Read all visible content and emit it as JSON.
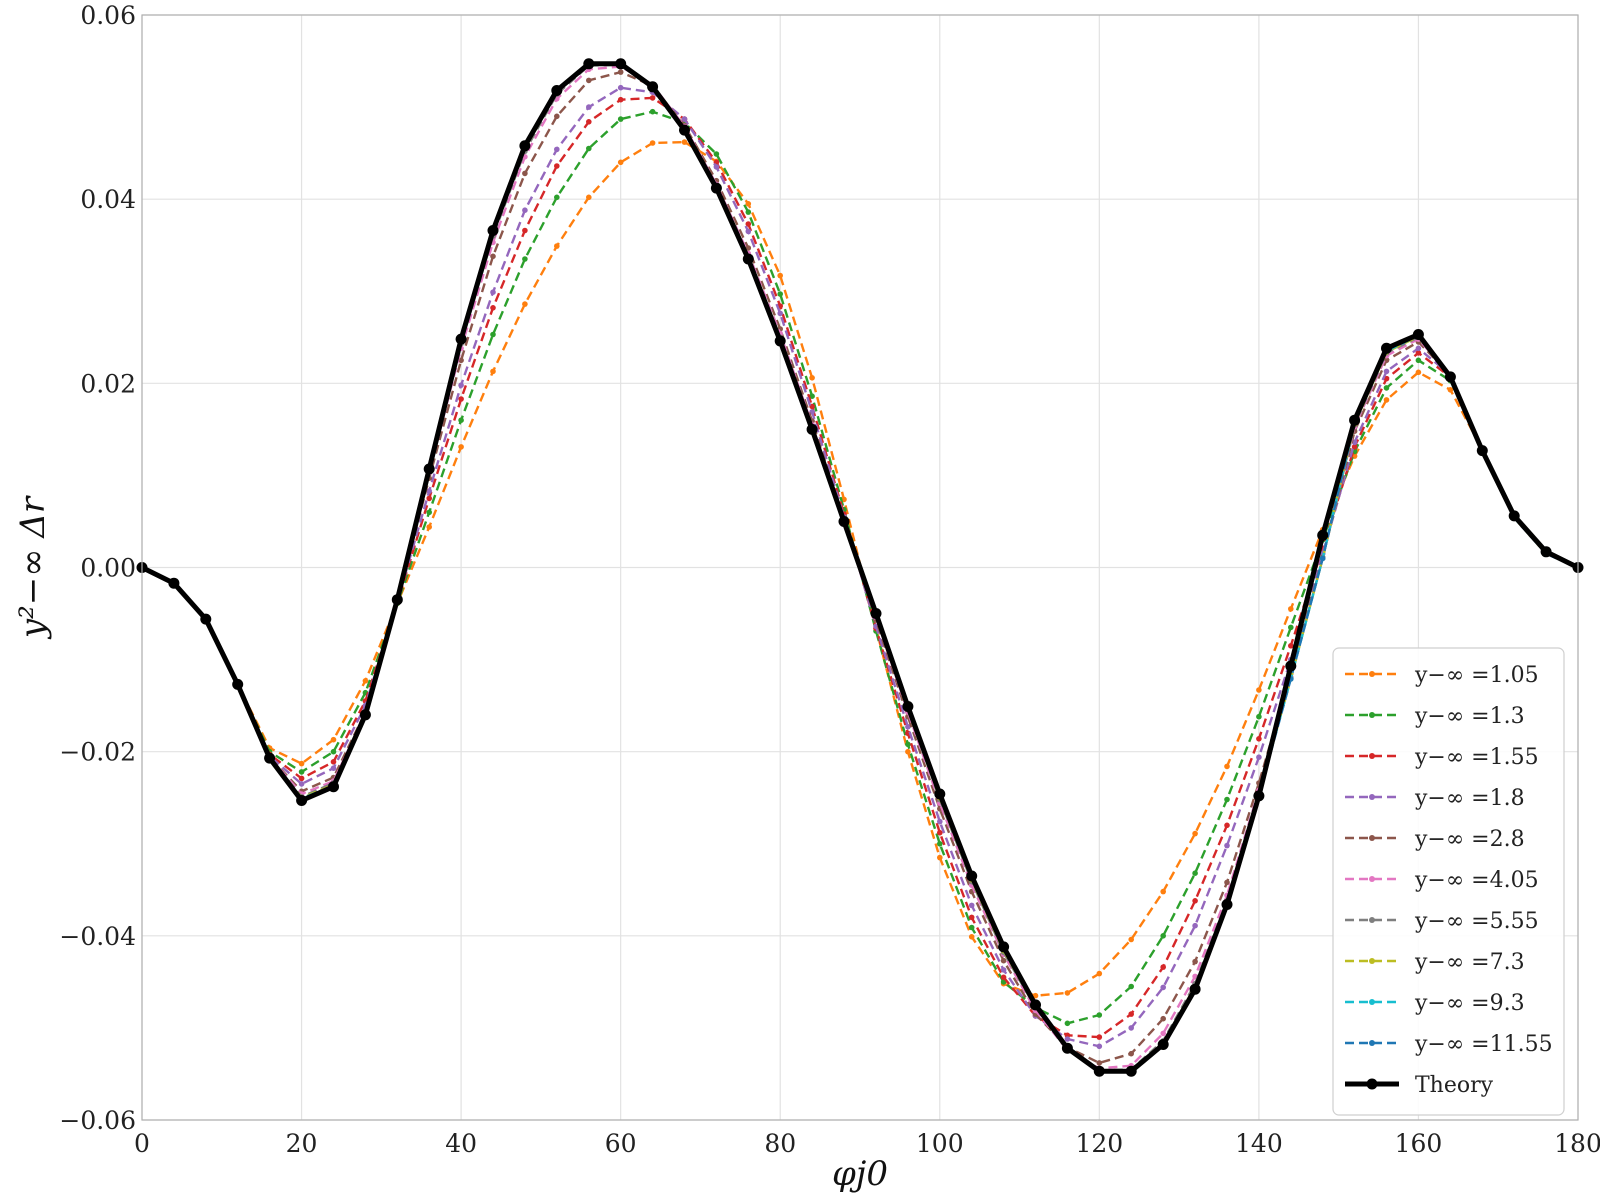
{
  "chart_data": {
    "type": "line",
    "xlabel": "φj0",
    "ylabel": "y²−∞ Δr",
    "xlim": [
      0,
      180
    ],
    "ylim": [
      -0.06,
      0.06
    ],
    "xticks": [
      0,
      20,
      40,
      60,
      80,
      100,
      120,
      140,
      160,
      180
    ],
    "xtick_labels": [
      "0",
      "20",
      "40",
      "60",
      "80",
      "100",
      "120",
      "140",
      "160",
      "180"
    ],
    "yticks": [
      -0.06,
      -0.04,
      -0.02,
      0.0,
      0.02,
      0.04,
      0.06
    ],
    "ytick_labels": [
      "−0.06",
      "−0.04",
      "−0.02",
      "0.00",
      "0.02",
      "0.04",
      "0.06"
    ],
    "grid": true,
    "legend_position": "lower-right",
    "x": [
      0,
      4,
      8,
      12,
      16,
      20,
      24,
      28,
      32,
      36,
      40,
      44,
      48,
      52,
      56,
      60,
      64,
      68,
      72,
      76,
      80,
      84,
      88,
      92,
      96,
      100,
      104,
      108,
      112,
      116,
      120,
      124,
      128,
      132,
      136,
      140,
      144,
      148,
      152,
      156,
      160,
      164,
      168,
      172,
      176,
      180
    ],
    "series": [
      {
        "name": "y−∞ =1.05",
        "color": "#ff7f0e",
        "style": "dashed",
        "values": [
          0,
          -0.0017,
          -0.0056,
          -0.0127,
          -0.0196,
          -0.0213,
          -0.0187,
          -0.0123,
          -0.0039,
          0.0044,
          0.0131,
          0.0213,
          0.0286,
          0.0349,
          0.0402,
          0.044,
          0.0461,
          0.0462,
          0.0441,
          0.0395,
          0.0317,
          0.0206,
          0.0074,
          -0.0066,
          -0.02,
          -0.0315,
          -0.0401,
          -0.0452,
          -0.0465,
          -0.0462,
          -0.0441,
          -0.0404,
          -0.0352,
          -0.0289,
          -0.0216,
          -0.0133,
          -0.0045,
          0.0041,
          0.0121,
          0.0182,
          0.0212,
          0.0193,
          0.0128,
          0.0054,
          0.0015,
          0
        ]
      },
      {
        "name": "y−∞ =1.3",
        "color": "#2ca02c",
        "style": "dashed",
        "values": [
          0,
          -0.0017,
          -0.0056,
          -0.0127,
          -0.02,
          -0.0222,
          -0.02,
          -0.0136,
          -0.0039,
          0.006,
          0.016,
          0.0253,
          0.0335,
          0.0402,
          0.0455,
          0.0487,
          0.0495,
          0.0483,
          0.0449,
          0.0386,
          0.0297,
          0.0186,
          0.0063,
          -0.0069,
          -0.0192,
          -0.03,
          -0.0391,
          -0.045,
          -0.0478,
          -0.0495,
          -0.0486,
          -0.0455,
          -0.04,
          -0.0332,
          -0.0252,
          -0.0162,
          -0.0065,
          0.003,
          0.0126,
          0.0195,
          0.0225,
          0.0203,
          0.0128,
          0.0054,
          0.0015,
          0
        ]
      },
      {
        "name": "y−∞ =1.55",
        "color": "#d62728",
        "style": "dashed",
        "values": [
          0,
          -0.0017,
          -0.0056,
          -0.0127,
          -0.0203,
          -0.0229,
          -0.0211,
          -0.0145,
          -0.0038,
          0.0075,
          0.0183,
          0.0282,
          0.0366,
          0.0436,
          0.0484,
          0.0508,
          0.051,
          0.0487,
          0.044,
          0.0373,
          0.0284,
          0.0175,
          0.0058,
          -0.0066,
          -0.018,
          -0.0288,
          -0.038,
          -0.0445,
          -0.0487,
          -0.0508,
          -0.051,
          -0.0485,
          -0.0434,
          -0.0362,
          -0.028,
          -0.0186,
          -0.0085,
          0.0021,
          0.0131,
          0.0205,
          0.0233,
          0.0207,
          0.0128,
          0.0054,
          0.0015,
          0
        ]
      },
      {
        "name": "y−∞ =1.8",
        "color": "#9467bd",
        "style": "dashed",
        "values": [
          0,
          -0.0017,
          -0.0056,
          -0.0127,
          -0.0205,
          -0.0235,
          -0.0218,
          -0.015,
          -0.0037,
          0.0083,
          0.0198,
          0.0299,
          0.0388,
          0.0454,
          0.05,
          0.0521,
          0.0516,
          0.0487,
          0.0435,
          0.0365,
          0.0276,
          0.0169,
          0.0055,
          -0.0064,
          -0.0173,
          -0.0276,
          -0.0367,
          -0.0437,
          -0.0487,
          -0.0512,
          -0.052,
          -0.05,
          -0.0456,
          -0.0389,
          -0.0302,
          -0.0206,
          -0.01,
          0.0015,
          0.0136,
          0.0213,
          0.0238,
          0.0209,
          0.0128,
          0.0054,
          0.0015,
          0
        ]
      },
      {
        "name": "y−∞ =2.8",
        "color": "#8c564b",
        "style": "dashed",
        "values": [
          0,
          -0.0017,
          -0.0056,
          -0.0127,
          -0.0206,
          -0.0243,
          -0.0228,
          -0.0157,
          -0.0036,
          0.0097,
          0.0225,
          0.0338,
          0.0428,
          0.049,
          0.0529,
          0.0538,
          0.0523,
          0.048,
          0.042,
          0.0347,
          0.0259,
          0.0159,
          0.0051,
          -0.0057,
          -0.0162,
          -0.0262,
          -0.0352,
          -0.0427,
          -0.0485,
          -0.0521,
          -0.0538,
          -0.0528,
          -0.049,
          -0.0428,
          -0.0342,
          -0.0234,
          -0.0115,
          0.0011,
          0.0148,
          0.0225,
          0.0245,
          0.0209,
          0.0128,
          0.0054,
          0.0015,
          0
        ]
      },
      {
        "name": "y−∞ =4.05",
        "color": "#e377c2",
        "style": "dashed",
        "values": [
          0,
          -0.0017,
          -0.0056,
          -0.0127,
          -0.0206,
          -0.0246,
          -0.0232,
          -0.0159,
          -0.0035,
          0.0103,
          0.0238,
          0.0353,
          0.0446,
          0.0509,
          0.0541,
          0.0544,
          0.0524,
          0.0479,
          0.0416,
          0.0341,
          0.0254,
          0.0155,
          0.005,
          -0.0054,
          -0.0157,
          -0.0256,
          -0.0345,
          -0.042,
          -0.0481,
          -0.0524,
          -0.0544,
          -0.0541,
          -0.0506,
          -0.0444,
          -0.0356,
          -0.0242,
          -0.0119,
          0.001,
          0.0153,
          0.023,
          0.0248,
          0.0209,
          0.0128,
          0.0054,
          0.0015,
          0
        ]
      },
      {
        "name": "y−∞ =5.55",
        "color": "#7f7f7f",
        "style": "dashed",
        "values": [
          0,
          -0.0017,
          -0.0056,
          -0.0127,
          -0.0206,
          -0.0249,
          -0.0234,
          -0.016,
          -0.0035,
          0.0105,
          0.0243,
          0.036,
          0.0452,
          0.0514,
          0.0545,
          0.0546,
          0.0523,
          0.0477,
          0.0414,
          0.0338,
          0.025,
          0.0152,
          0.005,
          -0.0052,
          -0.0154,
          -0.0252,
          -0.0341,
          -0.0418,
          -0.0478,
          -0.0522,
          -0.0546,
          -0.0545,
          -0.0514,
          -0.0452,
          -0.0362,
          -0.0245,
          -0.012,
          0.001,
          0.0155,
          0.0233,
          0.025,
          0.0209,
          0.0128,
          0.0054,
          0.0015,
          0
        ]
      },
      {
        "name": "y−∞ =7.3",
        "color": "#bcbd22",
        "style": "dashed",
        "values": [
          0,
          -0.0017,
          -0.0056,
          -0.0127,
          -0.0207,
          -0.025,
          -0.0236,
          -0.016,
          -0.0035,
          0.0106,
          0.0246,
          0.0364,
          0.0455,
          0.0516,
          0.0546,
          0.0546,
          0.0522,
          0.0476,
          0.0413,
          0.0337,
          0.0248,
          0.0151,
          0.005,
          -0.0051,
          -0.0152,
          -0.025,
          -0.0339,
          -0.0416,
          -0.0477,
          -0.0522,
          -0.0547,
          -0.0546,
          -0.0516,
          -0.0455,
          -0.0364,
          -0.0246,
          -0.0121,
          0.001,
          0.0156,
          0.0234,
          0.0251,
          0.0209,
          0.0128,
          0.0054,
          0.0015,
          0
        ]
      },
      {
        "name": "y−∞ =9.3",
        "color": "#17becf",
        "style": "dashed",
        "values": [
          0,
          -0.0017,
          -0.0056,
          -0.0127,
          -0.0207,
          -0.0251,
          -0.0237,
          -0.016,
          -0.0035,
          0.0106,
          0.0247,
          0.0365,
          0.0457,
          0.0517,
          0.0546,
          0.0546,
          0.0522,
          0.0476,
          0.0413,
          0.0336,
          0.0247,
          0.0151,
          0.005,
          -0.0051,
          -0.0152,
          -0.0248,
          -0.0338,
          -0.0415,
          -0.0476,
          -0.0522,
          -0.0547,
          -0.0547,
          -0.0517,
          -0.0457,
          -0.0365,
          -0.0247,
          -0.0121,
          0.001,
          0.0157,
          0.0235,
          0.0252,
          0.0209,
          0.0128,
          0.0054,
          0.0015,
          0
        ]
      },
      {
        "name": "y−∞ =11.55",
        "color": "#1f77b4",
        "style": "dashed",
        "values": [
          0,
          -0.0017,
          -0.0056,
          -0.0127,
          -0.0207,
          -0.0252,
          -0.0238,
          -0.016,
          -0.0035,
          0.0107,
          0.0248,
          0.0366,
          0.0458,
          0.0518,
          0.0547,
          0.0547,
          0.0522,
          0.0475,
          0.0412,
          0.0335,
          0.0247,
          0.015,
          0.005,
          -0.005,
          -0.0151,
          -0.0247,
          -0.0337,
          -0.0414,
          -0.0476,
          -0.0522,
          -0.0547,
          -0.0547,
          -0.0518,
          -0.0458,
          -0.0366,
          -0.0248,
          -0.0121,
          0.001,
          0.0158,
          0.0236,
          0.0252,
          0.0208,
          0.0128,
          0.0054,
          0.0015,
          0
        ]
      },
      {
        "name": "Theory",
        "color": "#000000",
        "style": "solid",
        "values": [
          0,
          -0.0017,
          -0.0056,
          -0.0127,
          -0.0207,
          -0.0253,
          -0.0238,
          -0.016,
          -0.0035,
          0.0107,
          0.0248,
          0.0366,
          0.0458,
          0.0518,
          0.0547,
          0.0547,
          0.0522,
          0.0475,
          0.0412,
          0.0335,
          0.0246,
          0.015,
          0.005,
          -0.005,
          -0.0151,
          -0.0246,
          -0.0335,
          -0.0412,
          -0.0475,
          -0.0522,
          -0.0547,
          -0.0547,
          -0.0518,
          -0.0458,
          -0.0366,
          -0.0248,
          -0.0107,
          0.0035,
          0.016,
          0.0238,
          0.0253,
          0.0207,
          0.0127,
          0.0056,
          0.0017,
          0
        ]
      }
    ]
  }
}
